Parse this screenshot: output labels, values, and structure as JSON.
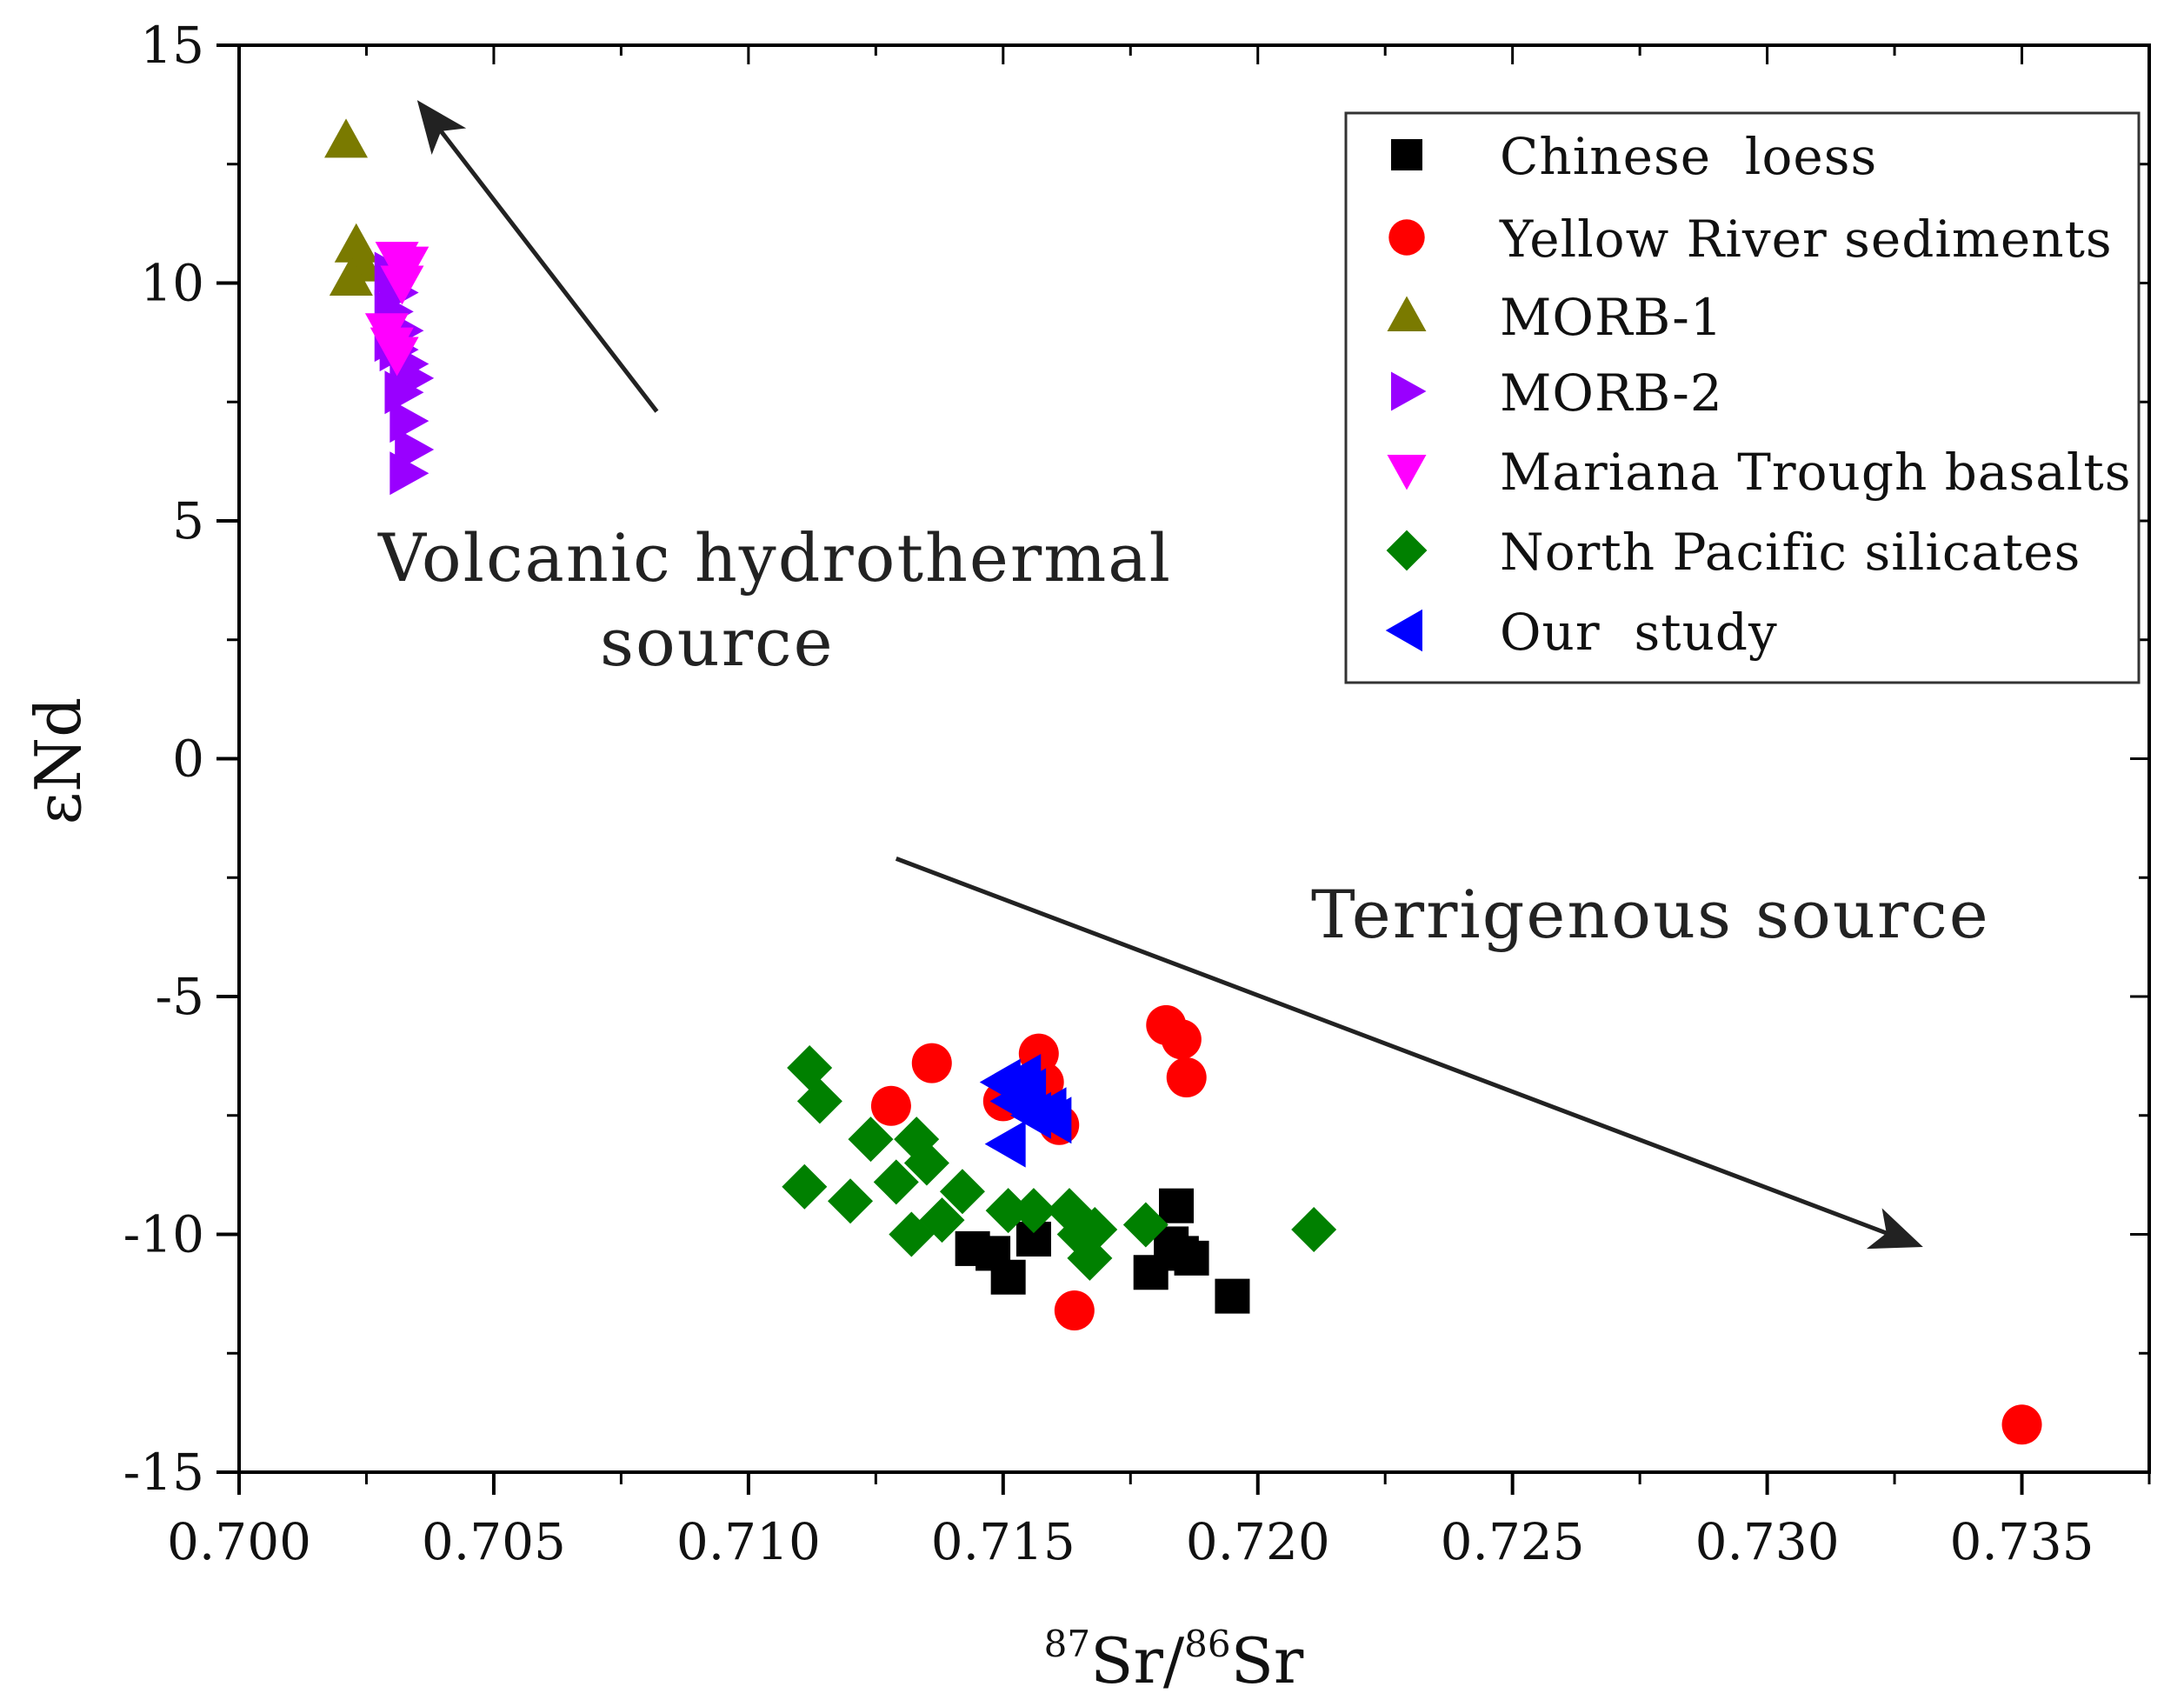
{
  "chart_data": {
    "type": "scatter",
    "title": "",
    "xlabel_sup1": "87",
    "xlabel_base1": "Sr/",
    "xlabel_sup2": "86",
    "xlabel_base2": "Sr",
    "ylabel": "εNd",
    "xlim": [
      0.7,
      0.7375
    ],
    "ylim": [
      -15,
      15
    ],
    "x_ticks": [
      "0.700",
      "0.705",
      "0.710",
      "0.715",
      "0.720",
      "0.725",
      "0.730",
      "0.735"
    ],
    "x_tick_values": [
      0.7,
      0.705,
      0.71,
      0.715,
      0.72,
      0.725,
      0.73,
      0.735
    ],
    "y_ticks": [
      "15",
      "10",
      "5",
      "0",
      "-5",
      "-10",
      "-15"
    ],
    "y_tick_values": [
      15,
      10,
      5,
      0,
      -5,
      -10,
      -15
    ],
    "legend_position": "top-right",
    "annotations": [
      {
        "text_line1": "Volcanic hydrothermal",
        "text_line2": "source",
        "arrow_from": [
          0.7082,
          7.3
        ],
        "arrow_to": [
          0.7036,
          13.7
        ]
      },
      {
        "text_line1": "Terrigenous source",
        "arrow_from": [
          0.7129,
          -2.1
        ],
        "arrow_to": [
          0.7329,
          -10.2
        ]
      }
    ],
    "series": [
      {
        "name": "Chinese  loess",
        "marker": "square",
        "color": "#000000",
        "points": [
          [
            0.7144,
            -10.3
          ],
          [
            0.7148,
            -10.4
          ],
          [
            0.7151,
            -10.9
          ],
          [
            0.7156,
            -10.1
          ],
          [
            0.7179,
            -10.8
          ],
          [
            0.7183,
            -10.2
          ],
          [
            0.7184,
            -9.4
          ],
          [
            0.7185,
            -10.4
          ],
          [
            0.7187,
            -10.5
          ],
          [
            0.7195,
            -11.3
          ]
        ]
      },
      {
        "name": "Yellow River sediments",
        "marker": "circle",
        "color": "#ff0000",
        "points": [
          [
            0.7128,
            -7.3
          ],
          [
            0.7136,
            -6.4
          ],
          [
            0.715,
            -7.2
          ],
          [
            0.7157,
            -6.2
          ],
          [
            0.7158,
            -6.8
          ],
          [
            0.7161,
            -7.7
          ],
          [
            0.7164,
            -11.6
          ],
          [
            0.7182,
            -5.6
          ],
          [
            0.7185,
            -5.9
          ],
          [
            0.7186,
            -6.7
          ],
          [
            0.735,
            -14.0
          ]
        ]
      },
      {
        "name": "MORB-1",
        "marker": "triangle-up",
        "color": "#7a7a00",
        "points": [
          [
            0.7021,
            13.0
          ],
          [
            0.7023,
            10.8
          ],
          [
            0.7024,
            10.4
          ],
          [
            0.7022,
            10.1
          ]
        ]
      },
      {
        "name": "MORB-2",
        "marker": "triangle-right",
        "color": "#9900ff",
        "points": [
          [
            0.703,
            10.2
          ],
          [
            0.7031,
            9.8
          ],
          [
            0.703,
            9.4
          ],
          [
            0.7032,
            9.0
          ],
          [
            0.7031,
            8.6
          ],
          [
            0.7033,
            8.3
          ],
          [
            0.7034,
            8.0
          ],
          [
            0.7032,
            7.7
          ],
          [
            0.7033,
            7.1
          ],
          [
            0.7034,
            6.5
          ],
          [
            0.7033,
            6.0
          ],
          [
            0.703,
            8.8
          ]
        ]
      },
      {
        "name": "Mariana Trough basalts",
        "marker": "triangle-down",
        "color": "#ff00ff",
        "points": [
          [
            0.7031,
            10.5
          ],
          [
            0.7033,
            10.4
          ],
          [
            0.7032,
            10.0
          ],
          [
            0.7029,
            9.0
          ],
          [
            0.703,
            8.7
          ],
          [
            0.7031,
            8.5
          ]
        ]
      },
      {
        "name": "North Pacific silicates",
        "marker": "diamond",
        "color": "#008000",
        "points": [
          [
            0.7112,
            -6.5
          ],
          [
            0.7114,
            -7.2
          ],
          [
            0.7111,
            -9.0
          ],
          [
            0.712,
            -9.3
          ],
          [
            0.7124,
            -8.0
          ],
          [
            0.7129,
            -8.9
          ],
          [
            0.7132,
            -10.0
          ],
          [
            0.7133,
            -8.0
          ],
          [
            0.7135,
            -8.5
          ],
          [
            0.7138,
            -9.7
          ],
          [
            0.7142,
            -9.1
          ],
          [
            0.7151,
            -9.5
          ],
          [
            0.7156,
            -9.5
          ],
          [
            0.7163,
            -9.5
          ],
          [
            0.7165,
            -10.0
          ],
          [
            0.7168,
            -9.9
          ],
          [
            0.7167,
            -10.5
          ],
          [
            0.7178,
            -9.8
          ],
          [
            0.7211,
            -9.9
          ]
        ]
      },
      {
        "name": "Our  study",
        "marker": "triangle-left",
        "color": "#0000ff",
        "points": [
          [
            0.715,
            -6.8
          ],
          [
            0.7154,
            -6.7
          ],
          [
            0.7152,
            -7.2
          ],
          [
            0.7156,
            -7.5
          ],
          [
            0.7159,
            -7.4
          ],
          [
            0.7151,
            -8.1
          ],
          [
            0.7155,
            -7.0
          ],
          [
            0.716,
            -7.6
          ]
        ]
      }
    ]
  }
}
